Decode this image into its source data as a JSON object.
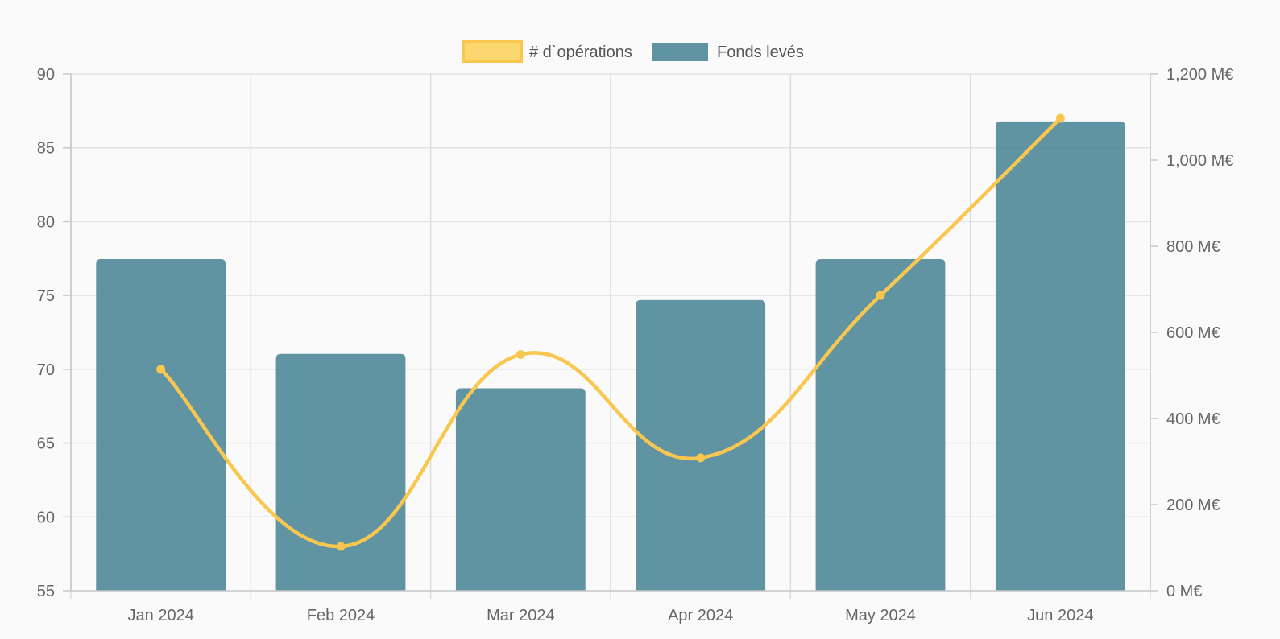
{
  "chart_data": {
    "type": "bar",
    "categories": [
      "Jan 2024",
      "Feb 2024",
      "Mar 2024",
      "Apr 2024",
      "May 2024",
      "Jun 2024"
    ],
    "series": [
      {
        "name": "Fonds levés",
        "type": "bar",
        "axis": "right",
        "values": [
          770,
          550,
          470,
          675,
          770,
          1090
        ],
        "color": "#4a8595"
      },
      {
        "name": "# d`opérations",
        "type": "line",
        "axis": "left",
        "values": [
          70,
          58,
          71,
          64,
          75,
          87
        ],
        "color": "#f9c74f"
      }
    ],
    "y_left": {
      "min": 55,
      "max": 90,
      "ticks": [
        "90",
        "85",
        "80",
        "75",
        "70",
        "65",
        "60",
        "55"
      ],
      "tick_values": [
        90,
        85,
        80,
        75,
        70,
        65,
        60,
        55
      ]
    },
    "y_right": {
      "min": 0,
      "max": 1200,
      "ticks": [
        "1,200 M€",
        "1,000 M€",
        "800 M€",
        "600 M€",
        "400 M€",
        "200 M€",
        "0 M€"
      ],
      "tick_values": [
        1200,
        1000,
        800,
        600,
        400,
        200,
        0
      ]
    },
    "grid": true,
    "legend_position": "top-center"
  }
}
